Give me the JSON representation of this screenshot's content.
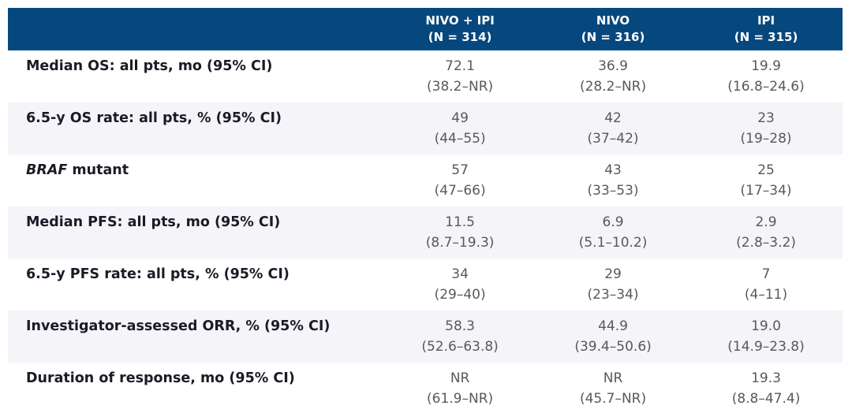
{
  "colors": {
    "header_bg": "#06487E",
    "row_alt_bg": "#F4F4F9",
    "label_text": "#1B1B26",
    "value_text": "#595959",
    "header_text": "#FFFFFF"
  },
  "table": {
    "columns": [
      {
        "name": "NIVO + IPI",
        "n": "(N = 314)"
      },
      {
        "name": "NIVO",
        "n": "(N = 316)"
      },
      {
        "name": "IPI",
        "n": "(N = 315)"
      }
    ],
    "rows": [
      {
        "label_italic": "",
        "label": "Median OS: all pts, mo (95% CI)",
        "cells": [
          {
            "value": "72.1",
            "ci": "(38.2–NR)"
          },
          {
            "value": "36.9",
            "ci": "(28.2–NR)"
          },
          {
            "value": "19.9",
            "ci": "(16.8–24.6)"
          }
        ]
      },
      {
        "label_italic": "",
        "label": "6.5-y OS rate: all pts, % (95% CI)",
        "cells": [
          {
            "value": "49",
            "ci": "(44–55)"
          },
          {
            "value": "42",
            "ci": "(37–42)"
          },
          {
            "value": "23",
            "ci": "(19–28)"
          }
        ]
      },
      {
        "label_italic": "BRAF",
        "label": " mutant",
        "cells": [
          {
            "value": "57",
            "ci": "(47–66)"
          },
          {
            "value": "43",
            "ci": "(33–53)"
          },
          {
            "value": "25",
            "ci": "(17–34)"
          }
        ]
      },
      {
        "label_italic": "",
        "label": "Median PFS: all pts, mo (95% CI)",
        "cells": [
          {
            "value": "11.5",
            "ci": "(8.7–19.3)"
          },
          {
            "value": "6.9",
            "ci": "(5.1–10.2)"
          },
          {
            "value": "2.9",
            "ci": "(2.8–3.2)"
          }
        ]
      },
      {
        "label_italic": "",
        "label": "6.5-y PFS rate: all pts, % (95% CI)",
        "cells": [
          {
            "value": "34",
            "ci": "(29–40)"
          },
          {
            "value": "29",
            "ci": "(23–34)"
          },
          {
            "value": "7",
            "ci": "(4–11)"
          }
        ]
      },
      {
        "label_italic": "",
        "label": "Investigator-assessed ORR, % (95% CI)",
        "cells": [
          {
            "value": "58.3",
            "ci": "(52.6–63.8)"
          },
          {
            "value": "44.9",
            "ci": "(39.4–50.6)"
          },
          {
            "value": "19.0",
            "ci": "(14.9–23.8)"
          }
        ]
      },
      {
        "label_italic": "",
        "label": "Duration of response, mo (95% CI)",
        "cells": [
          {
            "value": "NR",
            "ci": "(61.9–NR)"
          },
          {
            "value": "NR",
            "ci": "(45.7–NR)"
          },
          {
            "value": "19.3",
            "ci": "(8.8–47.4)"
          }
        ]
      }
    ]
  },
  "chart_data": {
    "type": "table",
    "columns": [
      "",
      "NIVO + IPI (N = 314)",
      "NIVO (N = 316)",
      "IPI (N = 315)"
    ],
    "rows": [
      [
        "Median OS: all pts, mo (95% CI)",
        "72.1 (38.2–NR)",
        "36.9 (28.2–NR)",
        "19.9 (16.8–24.6)"
      ],
      [
        "6.5-y OS rate: all pts, % (95% CI)",
        "49 (44–55)",
        "42 (37–42)",
        "23 (19–28)"
      ],
      [
        "BRAF mutant",
        "57 (47–66)",
        "43 (33–53)",
        "25 (17–34)"
      ],
      [
        "Median PFS: all pts, mo (95% CI)",
        "11.5 (8.7–19.3)",
        "6.9 (5.1–10.2)",
        "2.9 (2.8–3.2)"
      ],
      [
        "6.5-y PFS rate: all pts, % (95% CI)",
        "34 (29–40)",
        "29 (23–34)",
        "7 (4–11)"
      ],
      [
        "Investigator-assessed ORR, % (95% CI)",
        "58.3 (52.6–63.8)",
        "44.9 (39.4–50.6)",
        "19.0 (14.9–23.8)"
      ],
      [
        "Duration of response, mo (95% CI)",
        "NR (61.9–NR)",
        "NR (45.7–NR)",
        "19.3 (8.8–47.4)"
      ]
    ]
  }
}
